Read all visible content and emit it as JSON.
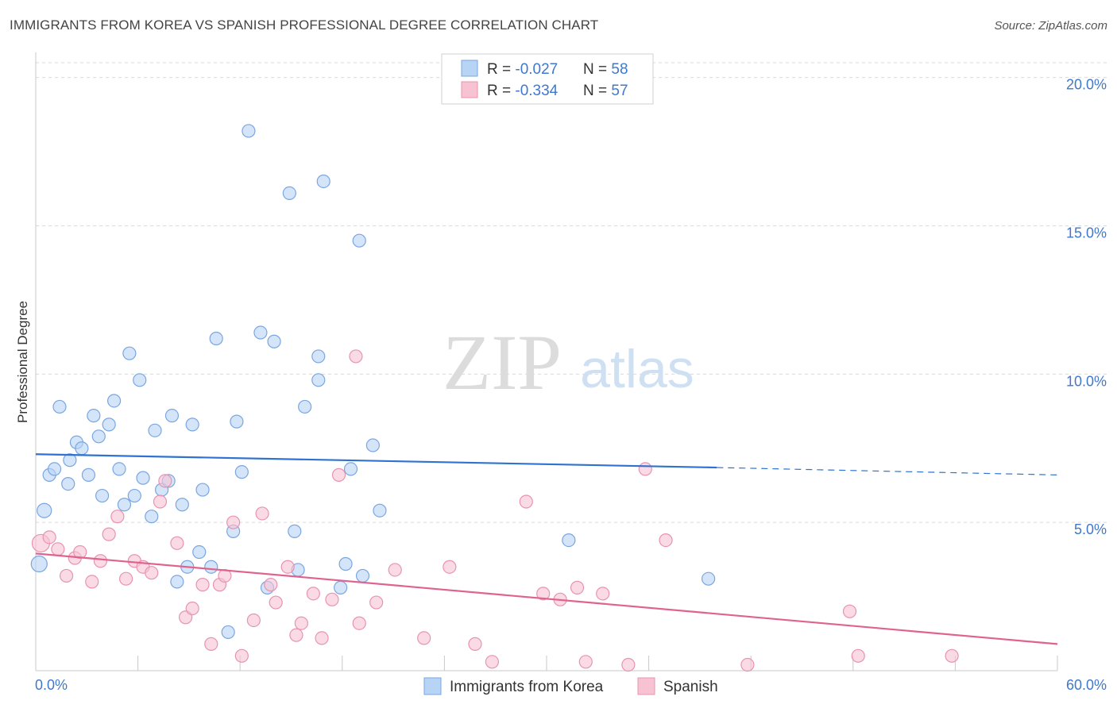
{
  "title": "IMMIGRANTS FROM KOREA VS SPANISH PROFESSIONAL DEGREE CORRELATION CHART",
  "source": "Source: ZipAtlas.com",
  "watermark": {
    "zip": "ZIP",
    "atlas": "atlas"
  },
  "colors": {
    "korea_fill": "#b8d4f5",
    "korea_stroke": "#7aa6e0",
    "korea_line": "#2f72cf",
    "spanish_fill": "#f7c3d3",
    "spanish_stroke": "#e893b0",
    "spanish_line": "#e0628f",
    "axis_value": "#3f78cc",
    "grid": "#d9d9d9"
  },
  "legend_top": [
    {
      "r_label": "R = ",
      "r_value": "-0.027",
      "n_label": "N = ",
      "n_value": "58",
      "series": "korea"
    },
    {
      "r_label": "R = ",
      "r_value": "-0.334",
      "n_label": "N = ",
      "n_value": "57",
      "series": "spanish"
    }
  ],
  "chart_data": {
    "type": "scatter",
    "title": "IMMIGRANTS FROM KOREA VS SPANISH PROFESSIONAL DEGREE CORRELATION CHART",
    "xlabel": "",
    "ylabel": "Professional Degree",
    "xlim": [
      0,
      60
    ],
    "ylim": [
      0,
      20.5
    ],
    "x_tick_labels": [
      {
        "value": 0,
        "label": "0.0%"
      },
      {
        "value": 60,
        "label": "60.0%"
      }
    ],
    "y_tick_labels": [
      {
        "value": 5,
        "label": "5.0%"
      },
      {
        "value": 10,
        "label": "10.0%"
      },
      {
        "value": 15,
        "label": "15.0%"
      },
      {
        "value": 20,
        "label": "20.0%"
      }
    ],
    "grid": "horizontal dashed",
    "legend_position": "bottom-center",
    "series": [
      {
        "name": "Immigrants from Korea",
        "color": "#b8d4f5",
        "trend": {
          "x": [
            0,
            40,
            60
          ],
          "y": [
            7.3,
            6.85,
            6.6
          ],
          "solid_until": 40
        },
        "points": [
          [
            0.2,
            3.6,
            18
          ],
          [
            0.5,
            5.4,
            16
          ],
          [
            0.8,
            6.6,
            14
          ],
          [
            1.1,
            6.8,
            14
          ],
          [
            1.4,
            8.9,
            14
          ],
          [
            1.9,
            6.3,
            14
          ],
          [
            2.0,
            7.1,
            14
          ],
          [
            2.4,
            7.7,
            14
          ],
          [
            2.7,
            7.5,
            14
          ],
          [
            3.1,
            6.6,
            14
          ],
          [
            3.4,
            8.6,
            14
          ],
          [
            3.7,
            7.9,
            14
          ],
          [
            3.9,
            5.9,
            14
          ],
          [
            4.3,
            8.3,
            14
          ],
          [
            4.6,
            9.1,
            14
          ],
          [
            4.9,
            6.8,
            14
          ],
          [
            5.2,
            5.6,
            14
          ],
          [
            5.5,
            10.7,
            14
          ],
          [
            5.8,
            5.9,
            14
          ],
          [
            6.1,
            9.8,
            14
          ],
          [
            6.3,
            6.5,
            14
          ],
          [
            6.8,
            5.2,
            14
          ],
          [
            7.0,
            8.1,
            14
          ],
          [
            7.4,
            6.1,
            14
          ],
          [
            7.8,
            6.4,
            14
          ],
          [
            8.0,
            8.6,
            14
          ],
          [
            8.3,
            3.0,
            14
          ],
          [
            8.6,
            5.6,
            14
          ],
          [
            8.9,
            3.5,
            14
          ],
          [
            9.2,
            8.3,
            14
          ],
          [
            9.6,
            4.0,
            14
          ],
          [
            9.8,
            6.1,
            14
          ],
          [
            10.3,
            3.5,
            14
          ],
          [
            10.6,
            11.2,
            14
          ],
          [
            11.3,
            1.3,
            14
          ],
          [
            11.6,
            4.7,
            14
          ],
          [
            11.8,
            8.4,
            14
          ],
          [
            12.1,
            6.7,
            14
          ],
          [
            12.5,
            18.2,
            14
          ],
          [
            13.2,
            11.4,
            14
          ],
          [
            13.6,
            2.8,
            14
          ],
          [
            14.0,
            11.1,
            14
          ],
          [
            14.9,
            16.1,
            14
          ],
          [
            15.2,
            4.7,
            14
          ],
          [
            15.4,
            3.4,
            14
          ],
          [
            15.8,
            8.9,
            14
          ],
          [
            16.6,
            9.8,
            14
          ],
          [
            16.6,
            10.6,
            14
          ],
          [
            16.9,
            16.5,
            14
          ],
          [
            17.9,
            2.8,
            14
          ],
          [
            18.2,
            3.6,
            14
          ],
          [
            18.5,
            6.8,
            14
          ],
          [
            19.0,
            14.5,
            14
          ],
          [
            19.2,
            3.2,
            14
          ],
          [
            19.8,
            7.6,
            14
          ],
          [
            20.2,
            5.4,
            14
          ],
          [
            31.3,
            4.4,
            14
          ],
          [
            39.5,
            3.1,
            14
          ]
        ]
      },
      {
        "name": "Spanish",
        "color": "#f7c3d3",
        "trend": {
          "x": [
            0,
            60
          ],
          "y": [
            3.95,
            0.9
          ]
        },
        "points": [
          [
            0.3,
            4.3,
            20
          ],
          [
            0.8,
            4.5,
            14
          ],
          [
            1.3,
            4.1,
            14
          ],
          [
            1.8,
            3.2,
            14
          ],
          [
            2.3,
            3.8,
            14
          ],
          [
            2.6,
            4.0,
            14
          ],
          [
            3.3,
            3.0,
            14
          ],
          [
            3.8,
            3.7,
            14
          ],
          [
            4.3,
            4.6,
            14
          ],
          [
            4.8,
            5.2,
            14
          ],
          [
            5.3,
            3.1,
            14
          ],
          [
            5.8,
            3.7,
            14
          ],
          [
            6.3,
            3.5,
            14
          ],
          [
            6.8,
            3.3,
            14
          ],
          [
            7.3,
            5.7,
            14
          ],
          [
            7.6,
            6.4,
            14
          ],
          [
            8.3,
            4.3,
            14
          ],
          [
            8.8,
            1.8,
            14
          ],
          [
            9.2,
            2.1,
            14
          ],
          [
            9.8,
            2.9,
            14
          ],
          [
            10.3,
            0.9,
            14
          ],
          [
            10.8,
            2.9,
            14
          ],
          [
            11.1,
            3.2,
            14
          ],
          [
            11.6,
            5.0,
            14
          ],
          [
            12.1,
            0.5,
            14
          ],
          [
            12.8,
            1.7,
            14
          ],
          [
            13.3,
            5.3,
            14
          ],
          [
            13.8,
            2.9,
            14
          ],
          [
            14.1,
            2.3,
            14
          ],
          [
            14.8,
            3.5,
            14
          ],
          [
            15.3,
            1.2,
            14
          ],
          [
            15.6,
            1.6,
            14
          ],
          [
            16.3,
            2.6,
            14
          ],
          [
            16.8,
            1.1,
            14
          ],
          [
            17.4,
            2.4,
            14
          ],
          [
            17.8,
            6.6,
            14
          ],
          [
            18.8,
            10.6,
            14
          ],
          [
            19.0,
            1.6,
            14
          ],
          [
            20.0,
            2.3,
            14
          ],
          [
            21.1,
            3.4,
            14
          ],
          [
            22.8,
            1.1,
            14
          ],
          [
            24.3,
            3.5,
            14
          ],
          [
            25.8,
            0.9,
            14
          ],
          [
            26.8,
            0.3,
            14
          ],
          [
            28.8,
            5.7,
            14
          ],
          [
            29.8,
            2.6,
            14
          ],
          [
            30.8,
            2.4,
            14
          ],
          [
            31.8,
            2.8,
            14
          ],
          [
            32.3,
            0.3,
            14
          ],
          [
            33.3,
            2.6,
            14
          ],
          [
            34.8,
            0.2,
            14
          ],
          [
            35.8,
            6.8,
            14
          ],
          [
            37.0,
            4.4,
            14
          ],
          [
            41.8,
            0.2,
            14
          ],
          [
            47.8,
            2.0,
            14
          ],
          [
            48.3,
            0.5,
            14
          ],
          [
            53.8,
            0.5,
            14
          ]
        ]
      }
    ]
  }
}
